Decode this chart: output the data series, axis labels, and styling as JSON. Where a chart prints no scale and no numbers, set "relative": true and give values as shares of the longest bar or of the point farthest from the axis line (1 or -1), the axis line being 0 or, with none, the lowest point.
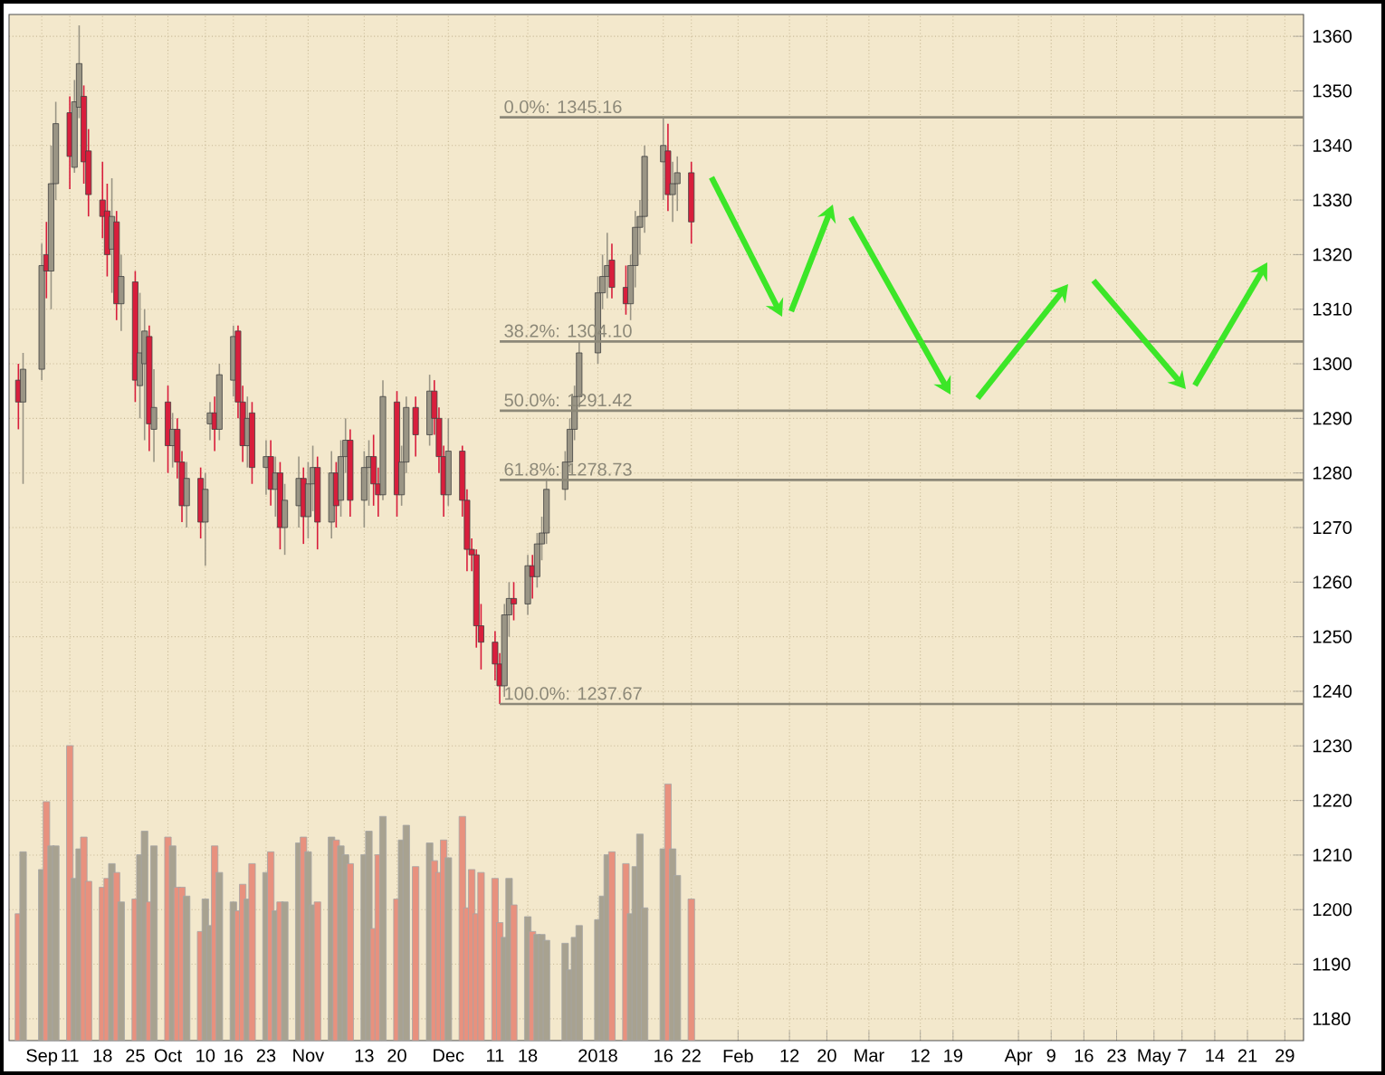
{
  "chart_data": [
    {
      "type": "candlestick",
      "x": [
        "2017-08-31",
        "2017-09-01",
        "2017-09-05",
        "2017-09-06",
        "2017-09-07",
        "2017-09-08",
        "2017-09-11",
        "2017-09-12",
        "2017-09-13",
        "2017-09-14",
        "2017-09-15",
        "2017-09-18",
        "2017-09-19",
        "2017-09-20",
        "2017-09-21",
        "2017-09-22",
        "2017-09-25",
        "2017-09-26",
        "2017-09-27",
        "2017-09-28",
        "2017-09-29",
        "2017-10-02",
        "2017-10-03",
        "2017-10-04",
        "2017-10-05",
        "2017-10-06",
        "2017-10-09",
        "2017-10-10",
        "2017-10-11",
        "2017-10-12",
        "2017-10-13",
        "2017-10-16",
        "2017-10-17",
        "2017-10-18",
        "2017-10-19",
        "2017-10-20",
        "2017-10-23",
        "2017-10-24",
        "2017-10-25",
        "2017-10-26",
        "2017-10-27",
        "2017-10-30",
        "2017-10-31",
        "2017-11-01",
        "2017-11-02",
        "2017-11-03",
        "2017-11-06",
        "2017-11-07",
        "2017-11-08",
        "2017-11-09",
        "2017-11-10",
        "2017-11-13",
        "2017-11-14",
        "2017-11-15",
        "2017-11-16",
        "2017-11-17",
        "2017-11-20",
        "2017-11-21",
        "2017-11-22",
        "2017-11-24",
        "2017-11-27",
        "2017-11-28",
        "2017-11-29",
        "2017-11-30",
        "2017-12-01",
        "2017-12-04",
        "2017-12-05",
        "2017-12-06",
        "2017-12-07",
        "2017-12-08",
        "2017-12-11",
        "2017-12-12",
        "2017-12-13",
        "2017-12-14",
        "2017-12-15",
        "2017-12-18",
        "2017-12-19",
        "2017-12-20",
        "2017-12-21",
        "2017-12-22",
        "2017-12-26",
        "2017-12-27",
        "2017-12-28",
        "2017-12-29",
        "2018-01-02",
        "2018-01-03",
        "2018-01-04",
        "2018-01-05",
        "2018-01-08",
        "2018-01-09",
        "2018-01-10",
        "2018-01-11",
        "2018-01-12",
        "2018-01-16",
        "2018-01-17",
        "2018-01-18",
        "2018-01-19",
        "2018-01-22"
      ],
      "ohlc": [
        [
          1297,
          1300,
          1288,
          1293
        ],
        [
          1293,
          1302,
          1278,
          1299
        ],
        [
          1299,
          1322,
          1297,
          1318
        ],
        [
          1320,
          1326,
          1312,
          1317
        ],
        [
          1317,
          1340,
          1310,
          1333
        ],
        [
          1333,
          1348,
          1330,
          1344
        ],
        [
          1346,
          1349,
          1332,
          1338
        ],
        [
          1336,
          1352,
          1335,
          1348
        ],
        [
          1347,
          1362,
          1345,
          1355
        ],
        [
          1349,
          1351,
          1333,
          1337
        ],
        [
          1339,
          1343,
          1327,
          1331
        ],
        [
          1330,
          1337,
          1323,
          1327
        ],
        [
          1328,
          1333,
          1316,
          1320
        ],
        [
          1321,
          1334,
          1313,
          1327
        ],
        [
          1326,
          1328,
          1308,
          1311
        ],
        [
          1311,
          1320,
          1306,
          1316
        ],
        [
          1315,
          1317,
          1293,
          1297
        ],
        [
          1296,
          1313,
          1290,
          1302
        ],
        [
          1300,
          1310,
          1286,
          1306
        ],
        [
          1305,
          1307,
          1284,
          1289
        ],
        [
          1288,
          1299,
          1282,
          1292
        ],
        [
          1293,
          1296,
          1280,
          1285
        ],
        [
          1285,
          1291,
          1281,
          1288
        ],
        [
          1288,
          1290,
          1279,
          1282
        ],
        [
          1282,
          1284,
          1271,
          1274
        ],
        [
          1274,
          1282,
          1270,
          1279
        ],
        [
          1279,
          1281,
          1268,
          1271
        ],
        [
          1271,
          1280,
          1263,
          1277
        ],
        [
          1289,
          1293,
          1286,
          1291
        ],
        [
          1291,
          1294,
          1284,
          1288
        ],
        [
          1288,
          1300,
          1286,
          1298
        ],
        [
          1297,
          1307,
          1294,
          1305
        ],
        [
          1306,
          1307,
          1290,
          1293
        ],
        [
          1293,
          1296,
          1282,
          1285
        ],
        [
          1285,
          1294,
          1281,
          1290
        ],
        [
          1291,
          1293,
          1278,
          1281
        ],
        [
          1281,
          1286,
          1276,
          1283
        ],
        [
          1283,
          1286,
          1274,
          1277
        ],
        [
          1277,
          1283,
          1272,
          1280
        ],
        [
          1280,
          1282,
          1266,
          1270
        ],
        [
          1270,
          1278,
          1265,
          1275
        ],
        [
          1274,
          1283,
          1270,
          1279
        ],
        [
          1279,
          1281,
          1267,
          1272
        ],
        [
          1272,
          1282,
          1268,
          1278
        ],
        [
          1278,
          1285,
          1273,
          1281
        ],
        [
          1281,
          1283,
          1266,
          1271
        ],
        [
          1271,
          1284,
          1268,
          1280
        ],
        [
          1280,
          1282,
          1270,
          1274
        ],
        [
          1275,
          1286,
          1272,
          1283
        ],
        [
          1283,
          1290,
          1280,
          1286
        ],
        [
          1286,
          1288,
          1272,
          1275
        ],
        [
          1275,
          1284,
          1270,
          1281
        ],
        [
          1281,
          1286,
          1274,
          1283
        ],
        [
          1283,
          1287,
          1274,
          1278
        ],
        [
          1278,
          1281,
          1272,
          1276
        ],
        [
          1276,
          1297,
          1275,
          1294
        ],
        [
          1293,
          1295,
          1272,
          1276
        ],
        [
          1276,
          1285,
          1274,
          1282
        ],
        [
          1282,
          1294,
          1280,
          1292
        ],
        [
          1292,
          1294,
          1283,
          1287
        ],
        [
          1287,
          1298,
          1285,
          1295
        ],
        [
          1295,
          1297,
          1287,
          1290
        ],
        [
          1290,
          1292,
          1280,
          1283
        ],
        [
          1283,
          1285,
          1272,
          1276
        ],
        [
          1276,
          1290,
          1274,
          1284
        ],
        [
          1284,
          1285,
          1272,
          1275
        ],
        [
          1275,
          1277,
          1262,
          1266
        ],
        [
          1266,
          1268,
          1262,
          1265
        ],
        [
          1265,
          1266,
          1248,
          1252
        ],
        [
          1252,
          1256,
          1244,
          1249
        ],
        [
          1249,
          1251,
          1242,
          1245
        ],
        [
          1245,
          1247,
          1237.67,
          1241
        ],
        [
          1241,
          1256,
          1239,
          1254
        ],
        [
          1254,
          1260,
          1250,
          1257
        ],
        [
          1257,
          1260,
          1253,
          1256
        ],
        [
          1256,
          1265,
          1254,
          1263
        ],
        [
          1263,
          1265,
          1257,
          1261
        ],
        [
          1261,
          1269,
          1259,
          1267
        ],
        [
          1267,
          1272,
          1264,
          1269
        ],
        [
          1269,
          1279,
          1267,
          1277
        ],
        [
          1277,
          1284,
          1275,
          1282
        ],
        [
          1282,
          1290,
          1280,
          1288
        ],
        [
          1288,
          1296,
          1286,
          1294
        ],
        [
          1294,
          1304,
          1292,
          1302
        ],
        [
          1302,
          1316,
          1300,
          1313
        ],
        [
          1313,
          1320,
          1310,
          1316
        ],
        [
          1316,
          1324,
          1312,
          1318
        ],
        [
          1319,
          1322,
          1312,
          1314
        ],
        [
          1314,
          1318,
          1309,
          1311
        ],
        [
          1311,
          1320,
          1308,
          1318
        ],
        [
          1318,
          1328,
          1314,
          1325
        ],
        [
          1325,
          1330,
          1320,
          1327
        ],
        [
          1327,
          1340,
          1324,
          1338
        ],
        [
          1337,
          1345.16,
          1330,
          1340
        ],
        [
          1339,
          1344,
          1328,
          1331
        ],
        [
          1331,
          1337,
          1326,
          1333
        ],
        [
          1333,
          1338,
          1328,
          1335
        ],
        [
          1335,
          1337,
          1322,
          1326
        ]
      ],
      "colors": [
        "#d81e3c",
        "#9a9585",
        "#9a9585",
        "#d81e3c",
        "#9a9585",
        "#9a9585",
        "#d81e3c",
        "#9a9585",
        "#9a9585",
        "#d81e3c",
        "#d81e3c",
        "#d81e3c",
        "#d81e3c",
        "#9a9585",
        "#d81e3c",
        "#9a9585",
        "#d81e3c",
        "#9a9585",
        "#9a9585",
        "#d81e3c",
        "#9a9585",
        "#d81e3c",
        "#9a9585",
        "#d81e3c",
        "#d81e3c",
        "#9a9585",
        "#d81e3c",
        "#9a9585",
        "#9a9585",
        "#d81e3c",
        "#9a9585",
        "#9a9585",
        "#d81e3c",
        "#d81e3c",
        "#9a9585",
        "#d81e3c",
        "#9a9585",
        "#d81e3c",
        "#9a9585",
        "#d81e3c",
        "#9a9585",
        "#9a9585",
        "#d81e3c",
        "#9a9585",
        "#9a9585",
        "#d81e3c",
        "#9a9585",
        "#d81e3c",
        "#9a9585",
        "#9a9585",
        "#d81e3c",
        "#9a9585",
        "#9a9585",
        "#d81e3c",
        "#d81e3c",
        "#9a9585",
        "#d81e3c",
        "#9a9585",
        "#9a9585",
        "#d81e3c",
        "#9a9585",
        "#d81e3c",
        "#d81e3c",
        "#d81e3c",
        "#9a9585",
        "#d81e3c",
        "#d81e3c",
        "#d81e3c",
        "#d81e3c",
        "#d81e3c",
        "#d81e3c",
        "#d81e3c",
        "#9a9585",
        "#9a9585",
        "#d81e3c",
        "#9a9585",
        "#d81e3c",
        "#9a9585",
        "#9a9585",
        "#9a9585",
        "#9a9585",
        "#9a9585",
        "#9a9585",
        "#9a9585",
        "#9a9585",
        "#9a9585",
        "#9a9585",
        "#d81e3c",
        "#d81e3c",
        "#9a9585",
        "#9a9585",
        "#9a9585",
        "#9a9585",
        "#9a9585",
        "#d81e3c",
        "#9a9585",
        "#9a9585",
        "#d81e3c"
      ],
      "xlim": [
        "2017-08-29",
        "2018-06-02"
      ],
      "xticks": [
        {
          "value": "2017-09-05",
          "label": "Sep"
        },
        {
          "value": "2017-09-11",
          "label": "11"
        },
        {
          "value": "2017-09-18",
          "label": "18"
        },
        {
          "value": "2017-09-25",
          "label": "25"
        },
        {
          "value": "2017-10-02",
          "label": "Oct"
        },
        {
          "value": "2017-10-10",
          "label": "10"
        },
        {
          "value": "2017-10-16",
          "label": "16"
        },
        {
          "value": "2017-10-23",
          "label": "23"
        },
        {
          "value": "2017-11-01",
          "label": "Nov"
        },
        {
          "value": "2017-11-13",
          "label": "13"
        },
        {
          "value": "2017-11-20",
          "label": "20"
        },
        {
          "value": "2017-12-01",
          "label": "Dec"
        },
        {
          "value": "2017-12-11",
          "label": "11"
        },
        {
          "value": "2017-12-18",
          "label": "18"
        },
        {
          "value": "2018-01-02",
          "label": "2018"
        },
        {
          "value": "2018-01-16",
          "label": "16"
        },
        {
          "value": "2018-01-22",
          "label": "22"
        },
        {
          "value": "2018-02-01",
          "label": "Feb"
        },
        {
          "value": "2018-02-12",
          "label": "12"
        },
        {
          "value": "2018-02-20",
          "label": "20"
        },
        {
          "value": "2018-03-01",
          "label": "Mar"
        },
        {
          "value": "2018-03-12",
          "label": "12"
        },
        {
          "value": "2018-03-19",
          "label": "19"
        },
        {
          "value": "2018-04-02",
          "label": "Apr"
        },
        {
          "value": "2018-04-09",
          "label": "9"
        },
        {
          "value": "2018-04-16",
          "label": "16"
        },
        {
          "value": "2018-04-23",
          "label": "23"
        },
        {
          "value": "2018-05-01",
          "label": "May"
        },
        {
          "value": "2018-05-07",
          "label": "7"
        },
        {
          "value": "2018-05-14",
          "label": "14"
        },
        {
          "value": "2018-05-21",
          "label": "21"
        },
        {
          "value": "2018-05-29",
          "label": "29"
        }
      ],
      "ylim": [
        1176,
        1364
      ],
      "yticks": [
        1180,
        1190,
        1200,
        1210,
        1220,
        1230,
        1240,
        1250,
        1260,
        1270,
        1280,
        1290,
        1300,
        1310,
        1320,
        1330,
        1340,
        1350,
        1360
      ],
      "grid": true,
      "ref_lines": [
        {
          "axis": "y",
          "value": 1345.16,
          "label": "0.0%: 1345.16",
          "color": "#8c8878"
        },
        {
          "axis": "y",
          "value": 1304.1,
          "label": "38.2%: 1304.10",
          "color": "#8c8878"
        },
        {
          "axis": "y",
          "value": 1291.42,
          "label": "50.0%: 1291.42",
          "color": "#8c8878"
        },
        {
          "axis": "y",
          "value": 1278.73,
          "label": "61.8%: 1278.73",
          "color": "#8c8878"
        },
        {
          "axis": "y",
          "value": 1237.67,
          "label": "100.0%: 1237.67",
          "color": "#8c8878"
        }
      ]
    },
    {
      "type": "bar",
      "relative": true,
      "tick_labels": false,
      "xlim": [
        "2017-08-29",
        "2018-06-02"
      ],
      "x": [
        "2017-08-31",
        "2017-09-01",
        "2017-09-05",
        "2017-09-06",
        "2017-09-07",
        "2017-09-08",
        "2017-09-11",
        "2017-09-12",
        "2017-09-13",
        "2017-09-14",
        "2017-09-15",
        "2017-09-18",
        "2017-09-19",
        "2017-09-20",
        "2017-09-21",
        "2017-09-22",
        "2017-09-25",
        "2017-09-26",
        "2017-09-27",
        "2017-09-28",
        "2017-09-29",
        "2017-10-02",
        "2017-10-03",
        "2017-10-04",
        "2017-10-05",
        "2017-10-06",
        "2017-10-09",
        "2017-10-10",
        "2017-10-11",
        "2017-10-12",
        "2017-10-13",
        "2017-10-16",
        "2017-10-17",
        "2017-10-18",
        "2017-10-19",
        "2017-10-20",
        "2017-10-23",
        "2017-10-24",
        "2017-10-25",
        "2017-10-26",
        "2017-10-27",
        "2017-10-30",
        "2017-10-31",
        "2017-11-01",
        "2017-11-02",
        "2017-11-03",
        "2017-11-06",
        "2017-11-07",
        "2017-11-08",
        "2017-11-09",
        "2017-11-10",
        "2017-11-13",
        "2017-11-14",
        "2017-11-15",
        "2017-11-16",
        "2017-11-17",
        "2017-11-20",
        "2017-11-21",
        "2017-11-22",
        "2017-11-24",
        "2017-11-27",
        "2017-11-28",
        "2017-11-29",
        "2017-11-30",
        "2017-12-01",
        "2017-12-04",
        "2017-12-05",
        "2017-12-06",
        "2017-12-07",
        "2017-12-08",
        "2017-12-11",
        "2017-12-12",
        "2017-12-13",
        "2017-12-14",
        "2017-12-15",
        "2017-12-18",
        "2017-12-19",
        "2017-12-20",
        "2017-12-21",
        "2017-12-22",
        "2017-12-26",
        "2017-12-27",
        "2017-12-28",
        "2017-12-29",
        "2018-01-02",
        "2018-01-03",
        "2018-01-04",
        "2018-01-05",
        "2018-01-08",
        "2018-01-09",
        "2018-01-10",
        "2018-01-11",
        "2018-01-12",
        "2018-01-16",
        "2018-01-17",
        "2018-01-18",
        "2018-01-19",
        "2018-01-22"
      ],
      "values": [
        0.43,
        0.64,
        0.58,
        0.81,
        0.66,
        0.66,
        1.0,
        0.55,
        0.65,
        0.69,
        0.54,
        0.52,
        0.55,
        0.6,
        0.57,
        0.47,
        0.48,
        0.63,
        0.71,
        0.47,
        0.66,
        0.69,
        0.66,
        0.52,
        0.52,
        0.49,
        0.37,
        0.48,
        0.39,
        0.66,
        0.57,
        0.47,
        0.44,
        0.53,
        0.48,
        0.6,
        0.57,
        0.64,
        0.44,
        0.47,
        0.47,
        0.67,
        0.69,
        0.64,
        0.46,
        0.47,
        0.69,
        0.68,
        0.66,
        0.63,
        0.6,
        0.63,
        0.71,
        0.38,
        0.63,
        0.76,
        0.48,
        0.68,
        0.73,
        0.59,
        0.67,
        0.61,
        0.57,
        0.68,
        0.62,
        0.76,
        0.45,
        0.58,
        0.43,
        0.57,
        0.55,
        0.4,
        0.35,
        0.55,
        0.46,
        0.42,
        0.37,
        0.36,
        0.36,
        0.34,
        0.33,
        0.24,
        0.35,
        0.39,
        0.41,
        0.49,
        0.63,
        0.64,
        0.6,
        0.43,
        0.59,
        0.7,
        0.45,
        0.65,
        0.87,
        0.65,
        0.56,
        0.48
      ],
      "colors": [
        "#e8917e",
        "#a8a290",
        "#a8a290",
        "#e8917e",
        "#a8a290",
        "#a8a290",
        "#e8917e",
        "#a8a290",
        "#a8a290",
        "#e8917e",
        "#e8917e",
        "#e8917e",
        "#e8917e",
        "#a8a290",
        "#e8917e",
        "#a8a290",
        "#e8917e",
        "#a8a290",
        "#a8a290",
        "#e8917e",
        "#a8a290",
        "#e8917e",
        "#a8a290",
        "#e8917e",
        "#e8917e",
        "#a8a290",
        "#e8917e",
        "#a8a290",
        "#a8a290",
        "#e8917e",
        "#a8a290",
        "#a8a290",
        "#e8917e",
        "#e8917e",
        "#a8a290",
        "#e8917e",
        "#a8a290",
        "#e8917e",
        "#a8a290",
        "#e8917e",
        "#a8a290",
        "#a8a290",
        "#e8917e",
        "#a8a290",
        "#a8a290",
        "#e8917e",
        "#a8a290",
        "#e8917e",
        "#a8a290",
        "#a8a290",
        "#e8917e",
        "#a8a290",
        "#a8a290",
        "#e8917e",
        "#e8917e",
        "#a8a290",
        "#e8917e",
        "#a8a290",
        "#a8a290",
        "#e8917e",
        "#a8a290",
        "#e8917e",
        "#e8917e",
        "#e8917e",
        "#a8a290",
        "#e8917e",
        "#e8917e",
        "#e8917e",
        "#e8917e",
        "#e8917e",
        "#e8917e",
        "#e8917e",
        "#a8a290",
        "#a8a290",
        "#e8917e",
        "#a8a290",
        "#e8917e",
        "#a8a290",
        "#a8a290",
        "#a8a290",
        "#a8a290",
        "#a8a290",
        "#a8a290",
        "#a8a290",
        "#a8a290",
        "#a8a290",
        "#a8a290",
        "#e8917e",
        "#e8917e",
        "#a8a290",
        "#a8a290",
        "#a8a290",
        "#a8a290",
        "#a8a290",
        "#e8917e",
        "#a8a290",
        "#a8a290",
        "#e8917e"
      ]
    }
  ]
}
